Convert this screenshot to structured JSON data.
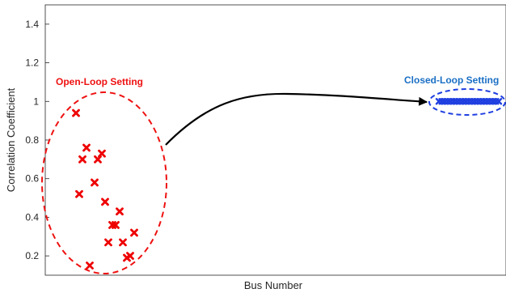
{
  "chart_data": {
    "type": "scatter",
    "xlabel": "Bus Number",
    "ylabel": "Correlation Coefficient",
    "ylim": [
      0.1,
      1.5
    ],
    "yticks": [
      "0.2",
      "0.4",
      "0.6",
      "0.8",
      "1",
      "1.2",
      "1.4"
    ],
    "grid": false,
    "series": [
      {
        "name": "Open-Loop Setting",
        "color": "#ee0000",
        "marker": "x",
        "points": [
          [
            1,
            0.94
          ],
          [
            2,
            0.52
          ],
          [
            3,
            0.7
          ],
          [
            4,
            0.76
          ],
          [
            5,
            0.15
          ],
          [
            6,
            0.58
          ],
          [
            7,
            0.7
          ],
          [
            8,
            0.73
          ],
          [
            9,
            0.48
          ],
          [
            10,
            0.27
          ],
          [
            11,
            0.36
          ],
          [
            12,
            0.36
          ],
          [
            13,
            0.43
          ],
          [
            14,
            0.27
          ],
          [
            15,
            0.19
          ],
          [
            16,
            0.2
          ],
          [
            17,
            0.32
          ]
        ]
      },
      {
        "name": "Closed-Loop Setting",
        "color": "#1f3fe0",
        "marker": "x",
        "points": [
          [
            1,
            1.0
          ],
          [
            2,
            1.0
          ],
          [
            3,
            1.0
          ],
          [
            4,
            1.0
          ],
          [
            5,
            1.0
          ],
          [
            6,
            1.0
          ],
          [
            7,
            1.0
          ],
          [
            8,
            1.0
          ],
          [
            9,
            1.0
          ],
          [
            10,
            1.0
          ],
          [
            11,
            1.0
          ],
          [
            12,
            1.0
          ],
          [
            13,
            1.0
          ],
          [
            14,
            1.0
          ],
          [
            15,
            1.0
          ],
          [
            16,
            1.0
          ],
          [
            17,
            1.0
          ],
          [
            18,
            1.0
          ],
          [
            19,
            1.0
          ],
          [
            20,
            1.0
          ],
          [
            21,
            1.0
          ]
        ]
      }
    ],
    "annotations": [
      {
        "text": "Open-Loop Setting",
        "color": "#ee1111"
      },
      {
        "text": "Closed-Loop Setting",
        "color": "#1a6fc4"
      }
    ]
  }
}
